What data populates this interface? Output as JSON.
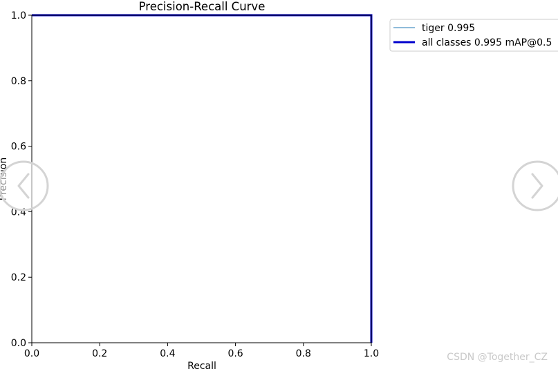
{
  "chart_data": {
    "type": "line",
    "title": "Precision-Recall Curve",
    "xlabel": "Recall",
    "ylabel": "Precision",
    "xlim": [
      0,
      1
    ],
    "ylim": [
      0,
      1
    ],
    "x_ticks": [
      "0.0",
      "0.2",
      "0.4",
      "0.6",
      "0.8",
      "1.0"
    ],
    "y_ticks": [
      "0.0",
      "0.2",
      "0.4",
      "0.6",
      "0.8",
      "1.0"
    ],
    "grid": false,
    "legend_position": "outside-top-right",
    "series": [
      {
        "name": "tiger 0.995",
        "color": "#1f77b4",
        "line_weight": "thin",
        "x": [
          0.0,
          0.995,
          1.0,
          1.0
        ],
        "y": [
          1.0,
          1.0,
          1.0,
          0.0
        ]
      },
      {
        "name": "all classes 0.995 mAP@0.5",
        "color": "#0000cd",
        "line_weight": "thick",
        "x": [
          0.0,
          0.995,
          1.0,
          1.0
        ],
        "y": [
          1.0,
          1.0,
          1.0,
          0.0
        ]
      }
    ]
  },
  "overlay": {
    "prev_icon": "chevron-left-icon",
    "next_icon": "chevron-right-icon",
    "watermark": "CSDN @Together_CZ"
  }
}
